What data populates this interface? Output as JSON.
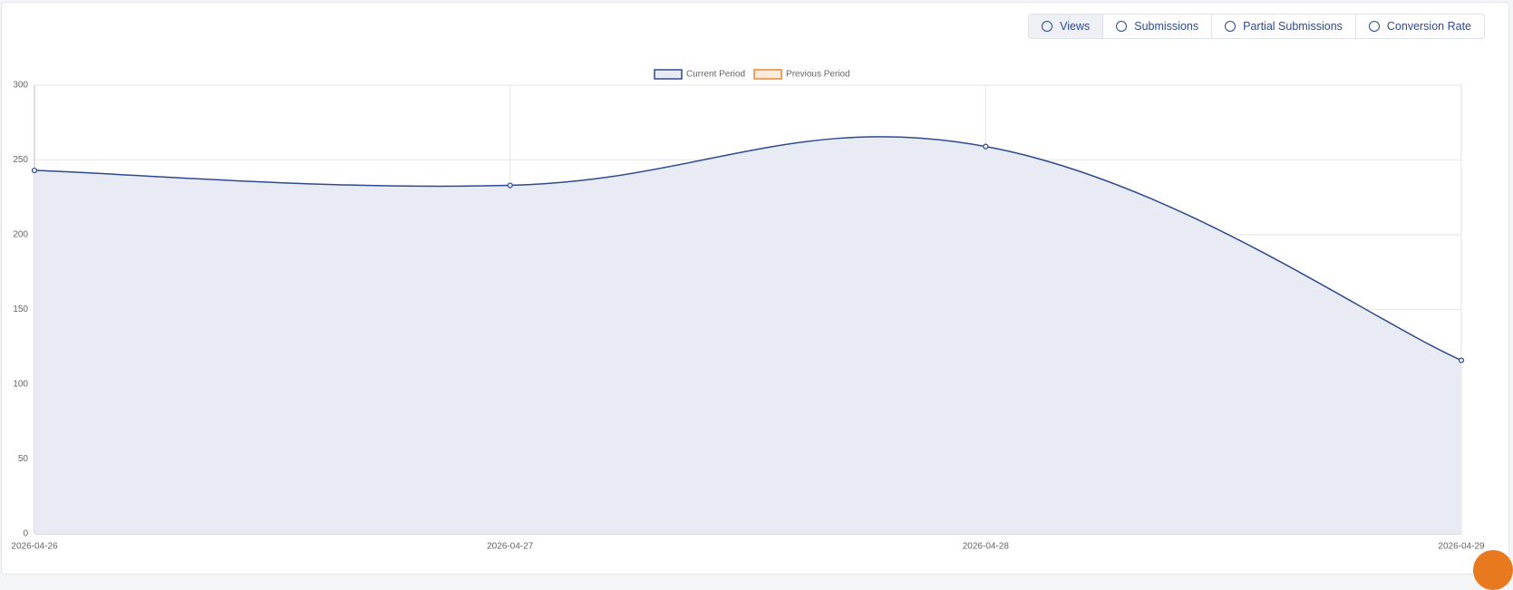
{
  "tabs": [
    {
      "label": "Views",
      "active": true
    },
    {
      "label": "Submissions",
      "active": false
    },
    {
      "label": "Partial Submissions",
      "active": false
    },
    {
      "label": "Conversion Rate",
      "active": false
    }
  ],
  "chart_data": {
    "type": "line",
    "categories": [
      "2026-04-26",
      "2026-04-27",
      "2026-04-28",
      "2026-04-29"
    ],
    "series": [
      {
        "name": "Current Period",
        "color": "#2e4a8f",
        "fill": "#e8ebf4",
        "values": [
          243,
          233,
          259,
          116
        ]
      },
      {
        "name": "Previous Period",
        "color": "#e8873a",
        "fill": "#fdebd9",
        "values": [
          null,
          null,
          null,
          null
        ]
      }
    ],
    "ylim": [
      0,
      300
    ],
    "yticks": [
      0,
      50,
      100,
      150,
      200,
      250,
      300
    ],
    "grid": true
  }
}
